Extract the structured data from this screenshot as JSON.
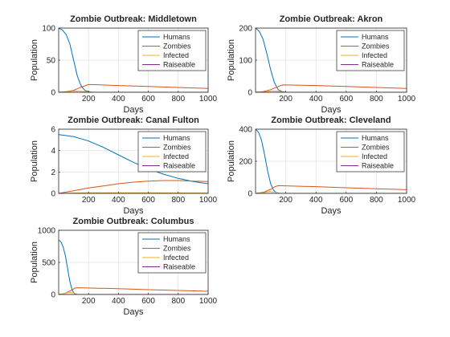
{
  "figure": {
    "legend_placement": "top-right",
    "grid": true,
    "colors": {
      "Humans": "#0072BD",
      "Zombies": "#D95319",
      "Infected": "#EDB120",
      "Raiseable": "#7E2F8E"
    }
  },
  "chart_data": [
    {
      "type": "line",
      "title": "Zombie Outbreak: Middletown",
      "xlabel": "Days",
      "ylabel": "Population",
      "xlim": [
        0,
        1000
      ],
      "ylim": [
        0,
        100
      ],
      "xticks": [
        200,
        400,
        600,
        800,
        1000
      ],
      "yticks": [
        0,
        50,
        100
      ],
      "grid": true,
      "legend": "top-right",
      "series": [
        {
          "name": "Humans",
          "x": [
            0,
            25,
            50,
            75,
            100,
            125,
            150,
            175,
            200,
            225,
            250,
            1000
          ],
          "values": [
            100,
            97,
            90,
            75,
            50,
            25,
            10,
            3,
            1,
            0,
            0,
            0
          ]
        },
        {
          "name": "Zombies",
          "x": [
            0,
            50,
            100,
            150,
            200,
            220,
            400,
            600,
            800,
            1000
          ],
          "values": [
            0,
            1,
            3,
            8,
            12,
            12,
            10.5,
            9,
            7.5,
            6
          ]
        },
        {
          "name": "Infected",
          "x": [
            0,
            50,
            100,
            150,
            200,
            250,
            1000
          ],
          "values": [
            0,
            0.5,
            2,
            1.5,
            0.5,
            0,
            0
          ]
        },
        {
          "name": "Raiseable",
          "x": [
            0,
            1000
          ],
          "values": [
            0,
            0
          ]
        }
      ]
    },
    {
      "type": "line",
      "title": "Zombie Outbreak: Akron",
      "xlabel": "Days",
      "ylabel": "Population",
      "xlim": [
        0,
        1000
      ],
      "ylim": [
        0,
        200
      ],
      "xticks": [
        200,
        400,
        600,
        800,
        1000
      ],
      "yticks": [
        0,
        100,
        200
      ],
      "grid": true,
      "legend": "top-right",
      "series": [
        {
          "name": "Humans",
          "x": [
            0,
            25,
            50,
            75,
            100,
            125,
            150,
            175,
            200,
            1000
          ],
          "values": [
            200,
            190,
            165,
            120,
            70,
            30,
            8,
            2,
            0,
            0
          ]
        },
        {
          "name": "Zombies",
          "x": [
            0,
            50,
            100,
            150,
            180,
            400,
            600,
            800,
            1000
          ],
          "values": [
            0,
            2,
            8,
            18,
            23,
            21,
            18,
            15,
            12
          ]
        },
        {
          "name": "Infected",
          "x": [
            0,
            60,
            110,
            150,
            190,
            1000
          ],
          "values": [
            0,
            1,
            4,
            3,
            0,
            0
          ]
        },
        {
          "name": "Raiseable",
          "x": [
            0,
            1000
          ],
          "values": [
            0,
            0
          ]
        }
      ]
    },
    {
      "type": "line",
      "title": "Zombie Outbreak: Canal Fulton",
      "xlabel": "Days",
      "ylabel": "Population",
      "xlim": [
        0,
        1000
      ],
      "ylim": [
        0,
        6
      ],
      "xticks": [
        200,
        400,
        600,
        800,
        1000
      ],
      "yticks": [
        0,
        2,
        4,
        6
      ],
      "grid": true,
      "legend": "top-right",
      "series": [
        {
          "name": "Humans",
          "x": [
            0,
            100,
            200,
            300,
            400,
            500,
            600,
            700,
            800,
            900,
            1000
          ],
          "values": [
            5.5,
            5.3,
            4.9,
            4.3,
            3.6,
            2.9,
            2.3,
            1.8,
            1.4,
            1.1,
            0.9
          ]
        },
        {
          "name": "Zombies",
          "x": [
            0,
            100,
            200,
            300,
            400,
            500,
            600,
            700,
            800,
            900,
            1000
          ],
          "values": [
            0,
            0.25,
            0.5,
            0.7,
            0.9,
            1.05,
            1.15,
            1.2,
            1.2,
            1.15,
            1.1
          ]
        },
        {
          "name": "Infected",
          "x": [
            0,
            200,
            400,
            600,
            800,
            1000
          ],
          "values": [
            0,
            0.05,
            0.05,
            0.05,
            0.04,
            0.03
          ]
        },
        {
          "name": "Raiseable",
          "x": [
            0,
            1000
          ],
          "values": [
            0,
            0
          ]
        }
      ]
    },
    {
      "type": "line",
      "title": "Zombie Outbreak: Cleveland",
      "xlabel": "Days",
      "ylabel": "Population",
      "xlim": [
        0,
        1000
      ],
      "ylim": [
        0,
        400
      ],
      "xticks": [
        200,
        400,
        600,
        800,
        1000
      ],
      "yticks": [
        0,
        200,
        400
      ],
      "grid": true,
      "legend": "top-right",
      "series": [
        {
          "name": "Humans",
          "x": [
            0,
            20,
            40,
            60,
            80,
            100,
            120,
            140,
            160,
            1000
          ],
          "values": [
            400,
            380,
            330,
            240,
            140,
            60,
            18,
            4,
            0,
            0
          ]
        },
        {
          "name": "Zombies",
          "x": [
            0,
            50,
            100,
            130,
            150,
            400,
            600,
            800,
            1000
          ],
          "values": [
            0,
            6,
            25,
            42,
            48,
            42,
            35,
            29,
            23
          ]
        },
        {
          "name": "Infected",
          "x": [
            0,
            50,
            90,
            130,
            160,
            1000
          ],
          "values": [
            0,
            3,
            12,
            8,
            0,
            0
          ]
        },
        {
          "name": "Raiseable",
          "x": [
            0,
            1000
          ],
          "values": [
            0,
            0
          ]
        }
      ]
    },
    {
      "type": "line",
      "title": "Zombie Outbreak: Columbus",
      "xlabel": "Days",
      "ylabel": "Population",
      "xlim": [
        0,
        1000
      ],
      "ylim": [
        0,
        1000
      ],
      "xticks": [
        200,
        400,
        600,
        800,
        1000
      ],
      "yticks": [
        0,
        500,
        1000
      ],
      "grid": true,
      "legend": "top-right",
      "series": [
        {
          "name": "Humans",
          "x": [
            0,
            15,
            30,
            45,
            60,
            75,
            90,
            105,
            120,
            1000
          ],
          "values": [
            850,
            820,
            740,
            600,
            400,
            200,
            70,
            15,
            0,
            0
          ]
        },
        {
          "name": "Zombies",
          "x": [
            0,
            40,
            80,
            110,
            130,
            400,
            600,
            800,
            1000
          ],
          "values": [
            0,
            15,
            60,
            100,
            105,
            90,
            75,
            62,
            50
          ]
        },
        {
          "name": "Infected",
          "x": [
            0,
            40,
            70,
            100,
            125,
            1000
          ],
          "values": [
            0,
            15,
            35,
            25,
            0,
            0
          ]
        },
        {
          "name": "Raiseable",
          "x": [
            0,
            1000
          ],
          "values": [
            0,
            0
          ]
        }
      ]
    }
  ]
}
